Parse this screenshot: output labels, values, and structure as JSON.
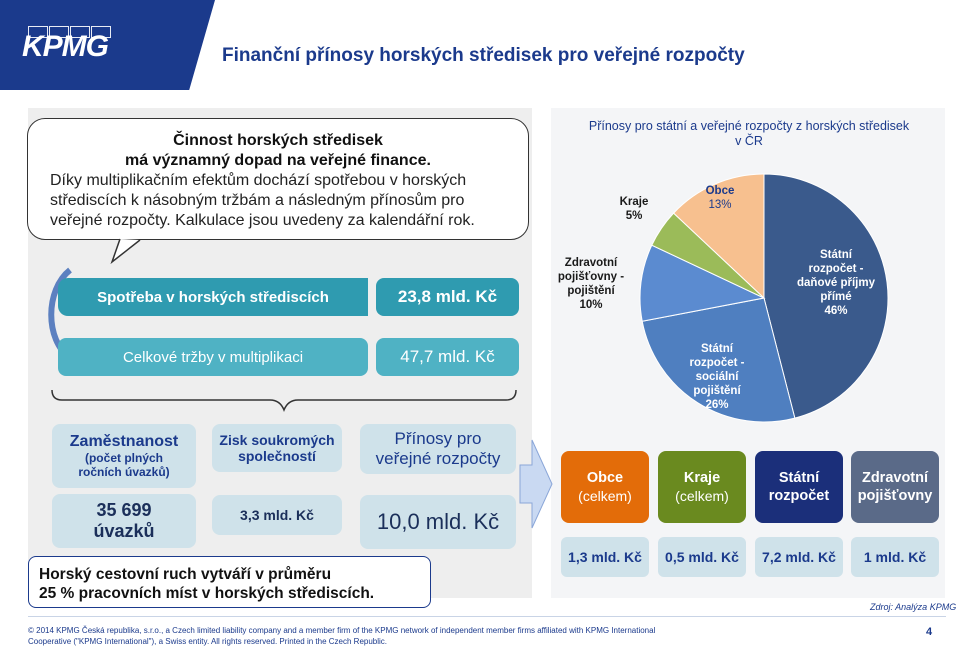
{
  "header": {
    "logo": "KPMG",
    "title": "Finanční přínosy horských středisek pro veřejné rozpočty"
  },
  "bubble": {
    "line1": "Činnost horských středisek",
    "line2": "má významný dopad na veřejné finance.",
    "line3": "Díky multiplikačním efektům dochází spotřebou v horských",
    "line4": "střediscích k násobným tržbám a následným přínosům pro",
    "line5": "veřejné rozpočty. Kalkulace jsou uvedeny za kalendářní rok."
  },
  "flow": {
    "spotreba_label": "Spotřeba v horských střediscích",
    "spotreba_value": "23,8 mld. Kč",
    "trzby_label": "Celkové tržby v multiplikaci",
    "trzby_value": "47,7 mld. Kč"
  },
  "stats": {
    "zamestnanost_title": "Zaměstnanost",
    "zamestnanost_sub1": "(počet plných",
    "zamestnanost_sub2": "ročních úvazků)",
    "zamestnanost_value1": "35 699",
    "zamestnanost_value2": "úvazků",
    "zisk_title1": "Zisk soukromých",
    "zisk_title2": "společností",
    "zisk_value": "3,3 mld. Kč",
    "prinosy_title1": "Přínosy pro",
    "prinosy_title2": "veřejné rozpočty",
    "prinosy_value": "10,0 mld. Kč"
  },
  "callout": {
    "line1": "Horský cestovní ruch vytváří v průměru",
    "line2": "25 % pracovních míst v horských střediscích."
  },
  "chart_data": {
    "type": "pie",
    "title": "Přínosy pro státní a veřejné rozpočty z horských středisek v ČR",
    "slices": [
      {
        "label": "Státní rozpočet - daňové příjmy přímé",
        "value": 46,
        "color": "#3a5a8c"
      },
      {
        "label": "Státní rozpočet - sociální pojištění",
        "value": 26,
        "color": "#4f7fc0"
      },
      {
        "label": "Zdravotní pojišťovny - pojištění",
        "value": 10,
        "color": "#5b8bd0"
      },
      {
        "label": "Kraje",
        "value": 5,
        "color": "#9bbb59"
      },
      {
        "label": "Obce",
        "value": 13,
        "color": "#f7c08f"
      }
    ]
  },
  "chart_labels": {
    "title_line1": "Přínosy pro státní a veřejné rozpočty z horských středisek",
    "title_line2": "v ČR",
    "statni_dane_1": "Státní",
    "statni_dane_2": "rozpočet -",
    "statni_dane_3": "daňové příjmy",
    "statni_dane_4": "přímé",
    "statni_dane_pct": "46%",
    "statni_soc_1": "Státní",
    "statni_soc_2": "rozpočet -",
    "statni_soc_3": "sociální",
    "statni_soc_4": "pojištění",
    "statni_soc_pct": "26%",
    "zdrav_1": "Zdravotní",
    "zdrav_2": "pojišťovny -",
    "zdrav_3": "pojištění",
    "zdrav_pct": "10%",
    "kraje_1": "Kraje",
    "kraje_pct": "5%",
    "obce_1": "Obce",
    "obce_pct": "13%"
  },
  "entities": [
    {
      "name": "Obce",
      "sub": "(celkem)",
      "value": "1,3 mld. Kč",
      "color": "#e36c09"
    },
    {
      "name": "Kraje",
      "sub": "(celkem)",
      "value": "0,5 mld. Kč",
      "color": "#6a8a1f"
    },
    {
      "name1": "Státní",
      "name2": "rozpočet",
      "value": "7,2 mld. Kč",
      "color": "#1b2f7a"
    },
    {
      "name1": "Zdravotní",
      "name2": "pojišťovny",
      "value": "1 mld. Kč",
      "color": "#5a6a88"
    }
  ],
  "source": "Zdroj: Analýza KPMG",
  "footer": {
    "line1": "© 2014 KPMG Česká republika, s.r.o., a Czech limited liability company and a member firm of the KPMG network of independent member firms affiliated with KPMG International",
    "line2": "Cooperative (\"KPMG International\"), a Swiss entity. All rights reserved. Printed in the Czech Republic.",
    "page": "4"
  }
}
